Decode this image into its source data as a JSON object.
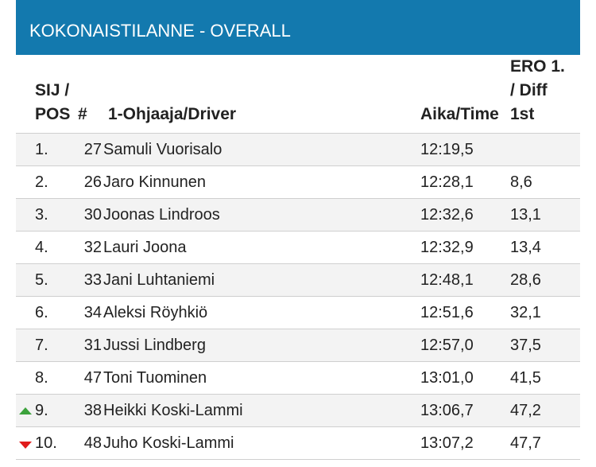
{
  "header": {
    "title": "KOKONAISTILANNE - OVERALL"
  },
  "columns": {
    "pos_line1": "SIJ /",
    "pos_line2": "POS",
    "num": "#",
    "driver": "1-Ohjaaja/Driver",
    "time": "Aika/Time",
    "diff_line1": "ERO 1.",
    "diff_line2": "/ Diff",
    "diff_line3": "1st"
  },
  "rows": [
    {
      "pos": "1.",
      "num": "27",
      "driver": "Samuli Vuorisalo",
      "time": "12:19,5",
      "diff": "",
      "trend": ""
    },
    {
      "pos": "2.",
      "num": "26",
      "driver": "Jaro Kinnunen",
      "time": "12:28,1",
      "diff": "8,6",
      "trend": ""
    },
    {
      "pos": "3.",
      "num": "30",
      "driver": "Joonas Lindroos",
      "time": "12:32,6",
      "diff": "13,1",
      "trend": ""
    },
    {
      "pos": "4.",
      "num": "32",
      "driver": "Lauri Joona",
      "time": "12:32,9",
      "diff": "13,4",
      "trend": ""
    },
    {
      "pos": "5.",
      "num": "33",
      "driver": "Jani Luhtaniemi",
      "time": "12:48,1",
      "diff": "28,6",
      "trend": ""
    },
    {
      "pos": "6.",
      "num": "34",
      "driver": "Aleksi Röyhkiö",
      "time": "12:51,6",
      "diff": "32,1",
      "trend": ""
    },
    {
      "pos": "7.",
      "num": "31",
      "driver": "Jussi Lindberg",
      "time": "12:57,0",
      "diff": "37,5",
      "trend": ""
    },
    {
      "pos": "8.",
      "num": "47",
      "driver": "Toni Tuominen",
      "time": "13:01,0",
      "diff": "41,5",
      "trend": ""
    },
    {
      "pos": "9.",
      "num": "38",
      "driver": "Heikki Koski-Lammi",
      "time": "13:06,7",
      "diff": "47,2",
      "trend": "up-arrow-icon"
    },
    {
      "pos": "10.",
      "num": "48",
      "driver": "Juho Koski-Lammi",
      "time": "13:07,2",
      "diff": "47,7",
      "trend": "down-arrow-icon"
    }
  ],
  "colors": {
    "header_bg": "#1379ae",
    "trend_up": "#3ca23c",
    "trend_down": "#e01b1b"
  }
}
